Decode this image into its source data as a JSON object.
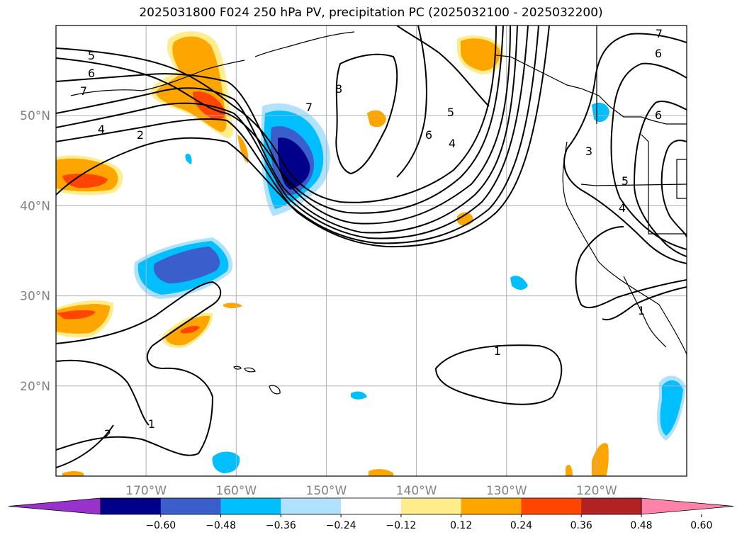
{
  "title": "2025031800 F024 250 hPa PV, precipitation PC (2025032100 - 2025032200)",
  "map": {
    "lon_range": [
      -180,
      -110
    ],
    "lat_range": [
      10,
      60
    ],
    "lon_ticks": [
      -170,
      -160,
      -150,
      -140,
      -130,
      -120
    ],
    "lon_tick_labels": [
      "170°W",
      "160°W",
      "150°W",
      "140°W",
      "130°W",
      "120°W"
    ],
    "lat_ticks": [
      20,
      30,
      40,
      50
    ],
    "lat_tick_labels": [
      "20°N",
      "30°N",
      "40°N",
      "50°N"
    ],
    "gridlines": true
  },
  "contour_labels": [
    "5",
    "6",
    "7",
    "4",
    "2",
    "8",
    "7",
    "5",
    "6",
    "4",
    "3",
    "5",
    "4",
    "6",
    "6",
    "7",
    "1",
    "1",
    "2",
    "1"
  ],
  "colorbar": {
    "colors": [
      "#9932cc",
      "#00008b",
      "#3a5fcd",
      "#00bfff",
      "#b0e2ff",
      "#ffffff",
      "#ffec8b",
      "#ffa500",
      "#ff4500",
      "#b22222",
      "#ff82ab"
    ],
    "tick_labels": [
      "−0.60",
      "−0.48",
      "−0.36",
      "−0.24",
      "−0.12",
      "0.12",
      "0.24",
      "0.36",
      "0.48",
      "0.60"
    ],
    "extend": "both"
  }
}
